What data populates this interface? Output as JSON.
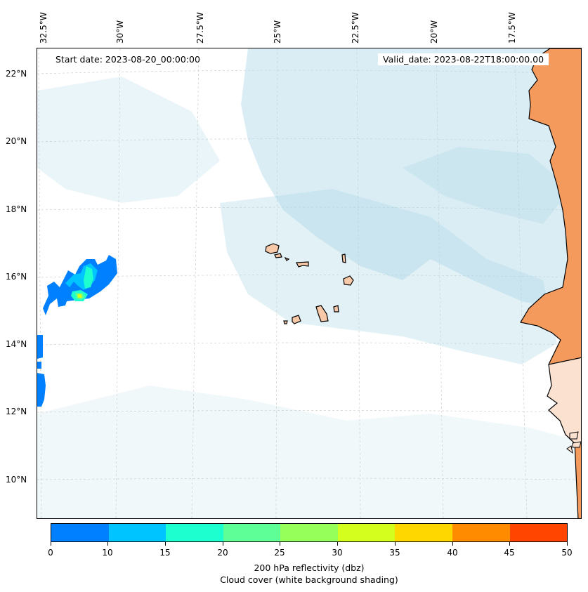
{
  "map": {
    "lon_labels": [
      "32.5°W",
      "30°W",
      "27.5°W",
      "25°W",
      "22.5°W",
      "20°W",
      "17.5°W"
    ],
    "lat_labels": [
      "22°N",
      "20°N",
      "18°N",
      "16°N",
      "14°N",
      "12°N",
      "10°N"
    ],
    "start_date": "Start date: 2023-08-20_00:00:00",
    "valid_date": "Valid_date: 2023-08-22T18:00:00.00",
    "land_color": "#f7c9a8",
    "coast_color": "#000000",
    "cloud_color": "#add8e6",
    "sahara_color": "#f39a5c"
  },
  "colorbar": {
    "colors": [
      "#0080ff",
      "#00c4ff",
      "#1effd0",
      "#5dff96",
      "#96ff5a",
      "#d4ff1e",
      "#ffd700",
      "#ff8c00",
      "#ff4500"
    ],
    "ticks": [
      "0",
      "10",
      "15",
      "20",
      "25",
      "30",
      "35",
      "40",
      "45",
      "50"
    ],
    "label_line1": "200 hPa reflectivity (dbz)",
    "label_line2": "Cloud cover (white background shading)"
  }
}
